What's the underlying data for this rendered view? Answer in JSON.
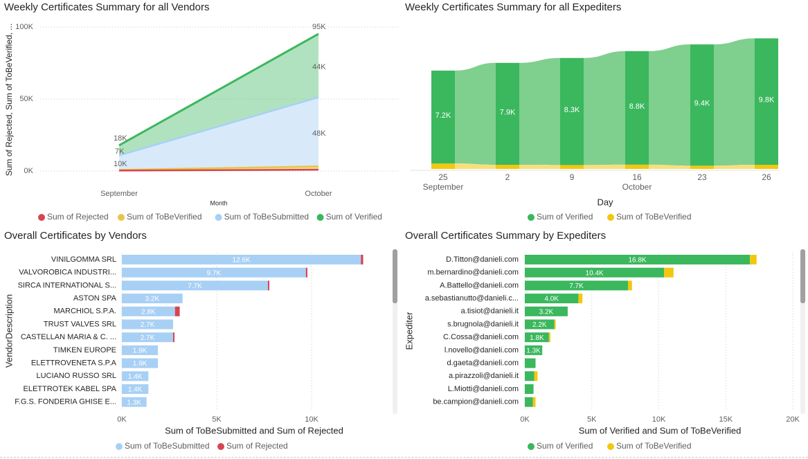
{
  "panels": {
    "tl_title": "Weekly Certificates Summary for all Vendors",
    "tr_title": "Weekly Certificates Summary for all Expediters",
    "bl_title": "Overall Certificates by Vendors",
    "br_title": "Overall Certificates Summary by Expediters"
  },
  "colors": {
    "rejected": "#d64550",
    "toBeVerified": "#e8c547",
    "toBeSubmitted": "#a8d0f5",
    "verified": "#3bb75e",
    "verifiedLight": "#7fcf8f",
    "yellow": "#f2c80f"
  },
  "chart_data": [
    {
      "type": "area",
      "title": "Weekly Certificates Summary for all Vendors",
      "xlabel": "Month",
      "ylabel": "Sum of Rejected, Sum of ToBeVerified, ...",
      "y_ticks": [
        "0K",
        "50K",
        "100K"
      ],
      "ylim": [
        0,
        100000
      ],
      "categories": [
        "September",
        "October"
      ],
      "series": [
        {
          "name": "Sum of Rejected",
          "values": [
            300,
            900
          ]
        },
        {
          "name": "Sum of ToBeVerified",
          "values": [
            500,
            2300
          ]
        },
        {
          "name": "Sum of ToBeSubmitted",
          "values": [
            10000,
            48000
          ]
        },
        {
          "name": "Sum of Verified",
          "values": [
            7000,
            44000
          ]
        }
      ],
      "data_labels": {
        "September": [
          "18K",
          "7K",
          "10K"
        ],
        "October": [
          "95K",
          "44K",
          "48K"
        ]
      },
      "legend": [
        "Sum of Rejected",
        "Sum of ToBeVerified",
        "Sum of ToBeSubmitted",
        "Sum of Verified"
      ],
      "legend_position": "bottom"
    },
    {
      "type": "bar",
      "title": "Weekly Certificates Summary for all Expediters",
      "xlabel": "Day",
      "x_ticks": [
        {
          "day": "25",
          "month": "September"
        },
        {
          "day": "2",
          "month": ""
        },
        {
          "day": "9",
          "month": ""
        },
        {
          "day": "16",
          "month": "October"
        },
        {
          "day": "23",
          "month": ""
        },
        {
          "day": "26",
          "month": ""
        }
      ],
      "series": [
        {
          "name": "Sum of Verified",
          "values": [
            7200,
            7900,
            8300,
            8800,
            9400,
            9800
          ],
          "labels": [
            "7.2K",
            "7.9K",
            "8.3K",
            "8.8K",
            "9.4K",
            "9.8K"
          ]
        },
        {
          "name": "Sum of ToBeVerified",
          "values": [
            420,
            320,
            300,
            330,
            250,
            320
          ]
        }
      ],
      "legend": [
        "Sum of Verified",
        "Sum of ToBeVerified"
      ],
      "legend_position": "bottom"
    },
    {
      "type": "bar",
      "orientation": "horizontal",
      "stacked": true,
      "title": "Overall Certificates by Vendors",
      "ylabel": "VendorDescription",
      "xlabel": "Sum of ToBeSubmitted and Sum of Rejected",
      "x_ticks": [
        "0K",
        "5K",
        "10K"
      ],
      "xlim": [
        0,
        15000
      ],
      "categories": [
        "VINILGOMMA SRL",
        "VALVOROBICA INDUSTRI...",
        "SIRCA INTERNATIONAL S...",
        "ASTON SPA",
        "MARCHIOL S.P.A.",
        "TRUST VALVES SRL",
        "CASTELLAN MARIA & C. ...",
        "TIMKEN EUROPE",
        "ELETTROVENETA S.P.A",
        "LUCIANO RUSSO SRL",
        "ELETTROTEK KABEL SPA",
        "F.G.S. FONDERIA GHISE E..."
      ],
      "series": [
        {
          "name": "Sum of ToBeSubmitted",
          "values": [
            12600,
            9700,
            7700,
            3200,
            2800,
            2700,
            2700,
            1900,
            1900,
            1400,
            1400,
            1300
          ],
          "labels": [
            "12.6K",
            "9.7K",
            "7.7K",
            "3.2K",
            "2.8K",
            "2.7K",
            "2.7K",
            "1.9K",
            "1.9K",
            "1.4K",
            "1.4K",
            "1.3K"
          ]
        },
        {
          "name": "Sum of Rejected",
          "values": [
            120,
            80,
            40,
            0,
            250,
            0,
            60,
            0,
            0,
            0,
            0,
            0
          ]
        }
      ],
      "legend": [
        "Sum of ToBeSubmitted",
        "Sum of Rejected"
      ],
      "legend_position": "bottom"
    },
    {
      "type": "bar",
      "orientation": "horizontal",
      "stacked": true,
      "title": "Overall Certificates Summary by Expediters",
      "ylabel": "Expediter",
      "xlabel": "Sum of Verified and Sum of ToBeVerified",
      "x_ticks": [
        "0K",
        "5K",
        "10K",
        "15K",
        "20K"
      ],
      "xlim": [
        0,
        20000
      ],
      "categories": [
        "D.Titton@danieli.com",
        "m.bernardino@danieli.com",
        "A.Battello@danieli.com",
        "a.sebastianutto@danieli.c...",
        "a.tisiot@danieli.it",
        "s.brugnola@danieli.it",
        "C.Cossa@danieli.com",
        "l.novello@danieli.com",
        "d.gaeta@danieli.com",
        "a.pirazzoli@danieli.it",
        "L.Miotti@danieli.com",
        "be.campion@danieli.com"
      ],
      "series": [
        {
          "name": "Sum of Verified",
          "values": [
            16800,
            10400,
            7700,
            4000,
            3200,
            2200,
            1800,
            1300,
            800,
            700,
            650,
            600
          ],
          "labels": [
            "16.8K",
            "10.4K",
            "7.7K",
            "4.0K",
            "3.2K",
            "2.2K",
            "1.8K",
            "1.3K",
            "",
            "",
            "",
            ""
          ]
        },
        {
          "name": "Sum of ToBeVerified",
          "values": [
            500,
            700,
            300,
            300,
            0,
            100,
            100,
            0,
            0,
            250,
            0,
            200
          ]
        }
      ],
      "legend": [
        "Sum of Verified",
        "Sum of ToBeVerified"
      ],
      "legend_position": "bottom"
    }
  ]
}
